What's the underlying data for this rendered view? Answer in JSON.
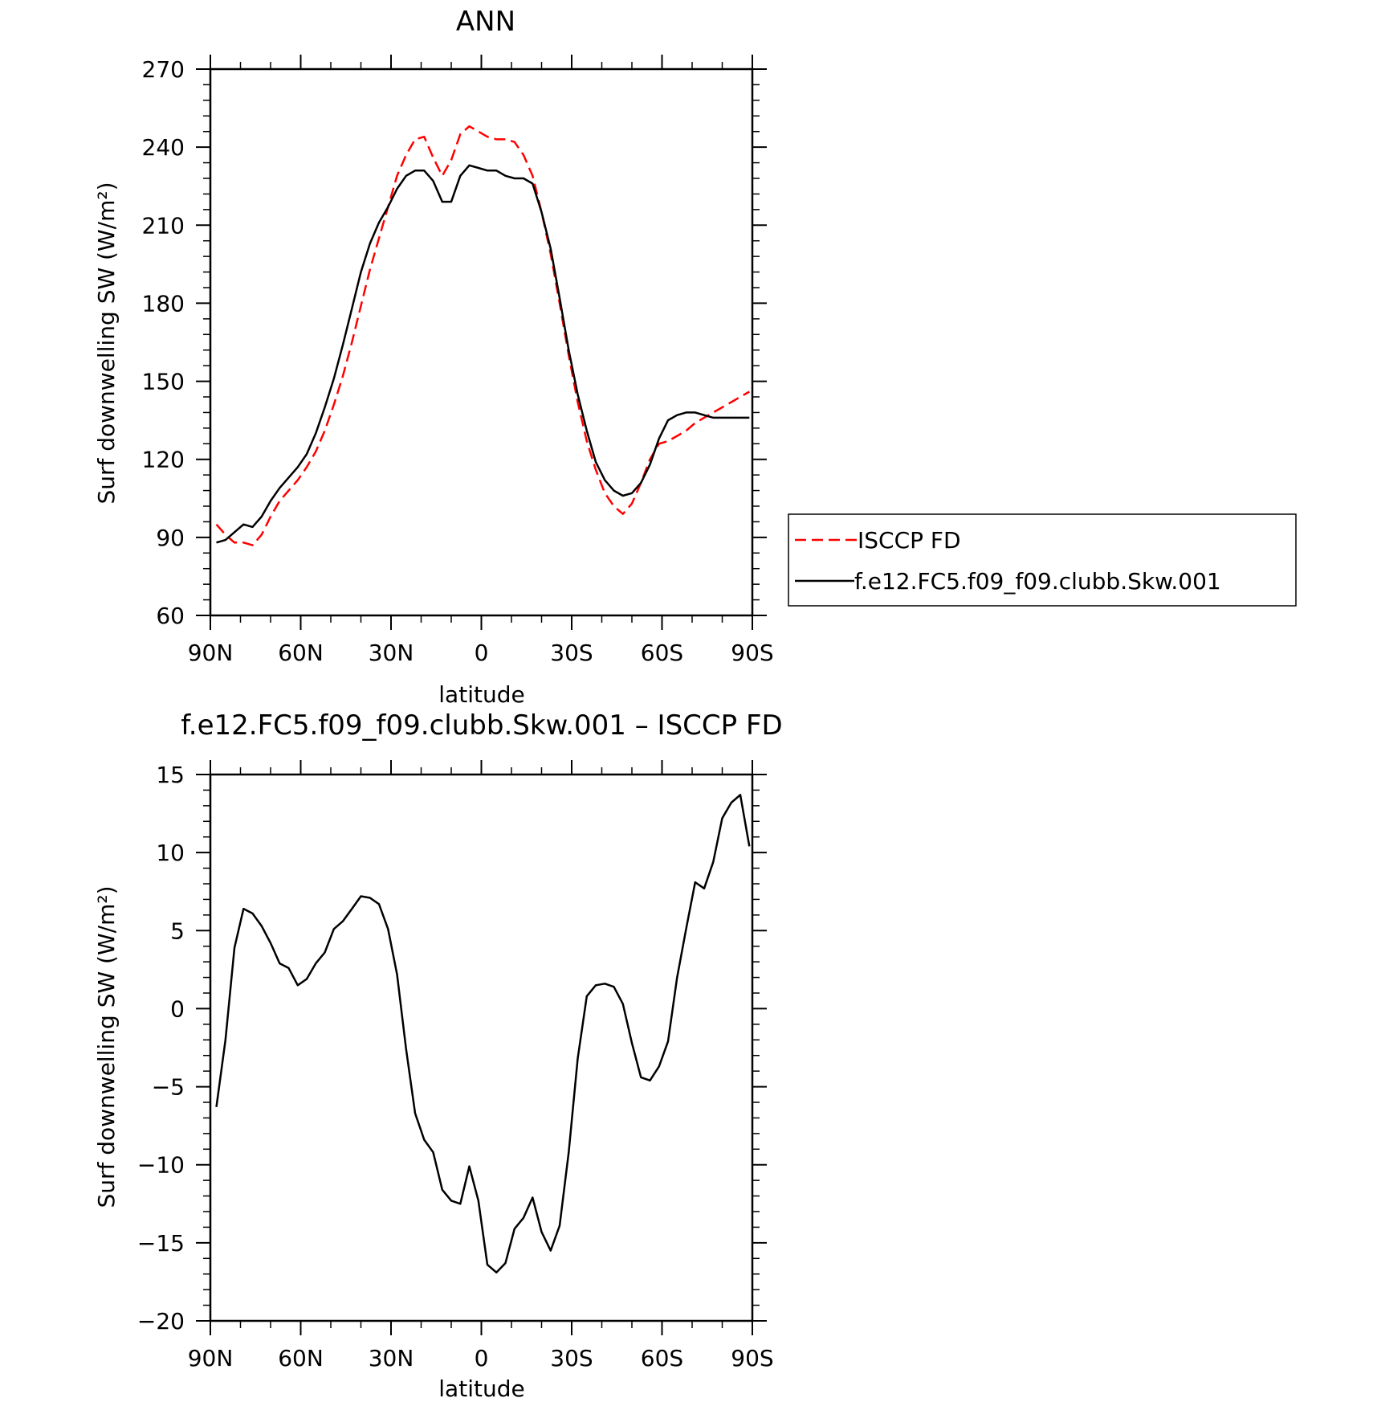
{
  "chart_data": [
    {
      "type": "line",
      "title": "ANN",
      "xlabel": "latitude",
      "ylabel": "Surf downwelling SW (W/m²)",
      "xlim": [
        -90,
        90
      ],
      "ylim": [
        60,
        270
      ],
      "xtick_values": [
        -90,
        -60,
        -30,
        0,
        30,
        60,
        90
      ],
      "xtick_labels": [
        "90N",
        "60N",
        "30N",
        "0",
        "30S",
        "60S",
        "90S"
      ],
      "ytick_values": [
        60,
        90,
        120,
        150,
        180,
        210,
        240,
        270
      ],
      "ytick_labels": [
        "60",
        "90",
        "120",
        "150",
        "180",
        "210",
        "240",
        "270"
      ],
      "grid": false,
      "legend_position": "right",
      "series": [
        {
          "name": "ISCCP FD",
          "color": "#ff0000",
          "dash": "dashed",
          "x": [
            -88,
            -85,
            -82,
            -79,
            -76,
            -73,
            -70,
            -67,
            -64,
            -61,
            -58,
            -55,
            -52,
            -49,
            -46,
            -43,
            -40,
            -37,
            -34,
            -31,
            -28,
            -25,
            -22,
            -19,
            -16,
            -13,
            -10,
            -7,
            -4,
            -1,
            2,
            5,
            8,
            11,
            14,
            17,
            20,
            23,
            26,
            29,
            32,
            35,
            38,
            41,
            44,
            47,
            50,
            53,
            56,
            59,
            62,
            65,
            68,
            71,
            74,
            77,
            80,
            83,
            86,
            89
          ],
          "y": [
            95,
            91,
            88,
            88,
            87,
            91,
            98,
            104,
            108,
            112,
            117,
            123,
            131,
            141,
            152,
            165,
            179,
            193,
            205,
            217,
            229,
            237,
            243,
            244,
            236,
            229,
            235,
            245,
            248,
            246,
            244,
            243,
            243,
            242,
            237,
            229,
            215,
            199,
            180,
            160,
            142,
            127,
            116,
            107,
            102,
            99,
            103,
            111,
            120,
            126,
            127,
            129,
            131,
            134,
            136,
            138,
            140,
            142,
            144,
            146
          ]
        },
        {
          "name": "f.e12.FC5.f09_f09.clubb.Skw.001",
          "color": "#000000",
          "dash": "solid",
          "x": [
            -88,
            -85,
            -82,
            -79,
            -76,
            -73,
            -70,
            -67,
            -64,
            -61,
            -58,
            -55,
            -52,
            -49,
            -46,
            -43,
            -40,
            -37,
            -34,
            -31,
            -28,
            -25,
            -22,
            -19,
            -16,
            -13,
            -10,
            -7,
            -4,
            -1,
            2,
            5,
            8,
            11,
            14,
            17,
            20,
            23,
            26,
            29,
            32,
            35,
            38,
            41,
            44,
            47,
            50,
            53,
            56,
            59,
            62,
            65,
            68,
            71,
            74,
            77,
            80,
            83,
            86,
            89
          ],
          "y": [
            88,
            89,
            92,
            95,
            94,
            98,
            104,
            109,
            113,
            117,
            122,
            130,
            140,
            151,
            164,
            178,
            192,
            203,
            211,
            217,
            224,
            229,
            231,
            231,
            227,
            219,
            219,
            229,
            233,
            232,
            231,
            231,
            229,
            228,
            228,
            226,
            215,
            201,
            182,
            162,
            145,
            131,
            119,
            112,
            108,
            106,
            107,
            111,
            118,
            128,
            135,
            137,
            138,
            138,
            137,
            136,
            136,
            136,
            136,
            136
          ]
        }
      ]
    },
    {
      "type": "line",
      "title": "f.e12.FC5.f09_f09.clubb.Skw.001 – ISCCP FD",
      "xlabel": "latitude",
      "ylabel": "Surf downwelling SW (W/m²)",
      "xlim": [
        -90,
        90
      ],
      "ylim": [
        -20,
        15
      ],
      "xtick_values": [
        -90,
        -60,
        -30,
        0,
        30,
        60,
        90
      ],
      "xtick_labels": [
        "90N",
        "60N",
        "30N",
        "0",
        "30S",
        "60S",
        "90S"
      ],
      "ytick_values": [
        -20,
        -15,
        -10,
        -5,
        0,
        5,
        10,
        15
      ],
      "ytick_labels": [
        "−20",
        "−15",
        "−10",
        "−5",
        "0",
        "5",
        "10",
        "15"
      ],
      "grid": false,
      "series": [
        {
          "color": "#000000",
          "dash": "solid",
          "x": [
            -88,
            -85,
            -82,
            -79,
            -76,
            -73,
            -70,
            -67,
            -64,
            -61,
            -58,
            -55,
            -52,
            -49,
            -46,
            -43,
            -40,
            -37,
            -34,
            -31,
            -28,
            -25,
            -22,
            -19,
            -16,
            -13,
            -10,
            -7,
            -4,
            -1,
            2,
            5,
            8,
            11,
            14,
            17,
            20,
            23,
            26,
            29,
            32,
            35,
            38,
            41,
            44,
            47,
            50,
            53,
            56,
            59,
            62,
            65,
            68,
            71,
            74,
            77,
            80,
            83,
            86,
            89
          ],
          "y": [
            -6.3,
            -2,
            3.9,
            6.4,
            6.1,
            5.3,
            4.2,
            2.9,
            2.6,
            1.5,
            1.9,
            2.9,
            3.6,
            5.1,
            5.6,
            6.4,
            7.2,
            7.1,
            6.7,
            5.1,
            2.2,
            -2.6,
            -6.7,
            -8.4,
            -9.2,
            -11.6,
            -12.3,
            -12.5,
            -10.1,
            -12.3,
            -16.4,
            -16.9,
            -16.3,
            -14.1,
            -13.4,
            -12.1,
            -14.3,
            -15.5,
            -13.9,
            -9.2,
            -3.2,
            0.8,
            1.5,
            1.6,
            1.4,
            0.3,
            -2.2,
            -4.4,
            -4.6,
            -3.7,
            -2.1,
            2,
            5.1,
            8.1,
            7.7,
            9.4,
            12.2,
            13.2,
            13.7,
            10.4
          ]
        }
      ]
    }
  ]
}
